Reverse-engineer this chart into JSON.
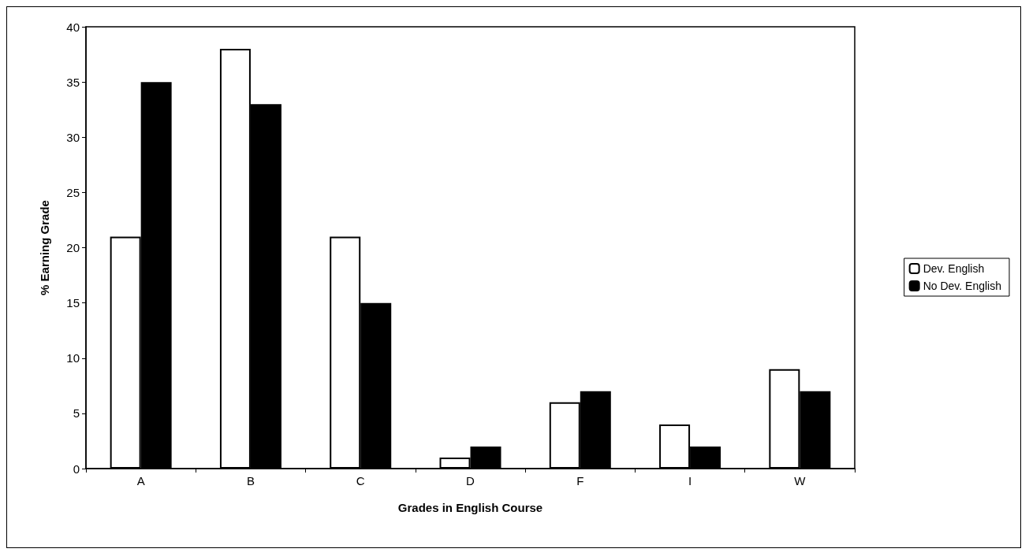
{
  "chart_data": {
    "type": "bar",
    "xlabel": "Grades in English Course",
    "ylabel": "% Earning Grade",
    "categories": [
      "A",
      "B",
      "C",
      "D",
      "F",
      "I",
      "W"
    ],
    "series": [
      {
        "name": "Dev. English",
        "color": "#ffffff",
        "values": [
          21,
          38,
          21,
          1,
          6,
          4,
          9
        ]
      },
      {
        "name": "No Dev. English",
        "color": "#000000",
        "values": [
          35,
          33,
          15,
          2,
          7,
          2,
          7
        ]
      }
    ],
    "ylim": [
      0,
      40
    ],
    "yticks": [
      0,
      5,
      10,
      15,
      20,
      25,
      30,
      35,
      40
    ],
    "grid": false,
    "legend": "right"
  }
}
